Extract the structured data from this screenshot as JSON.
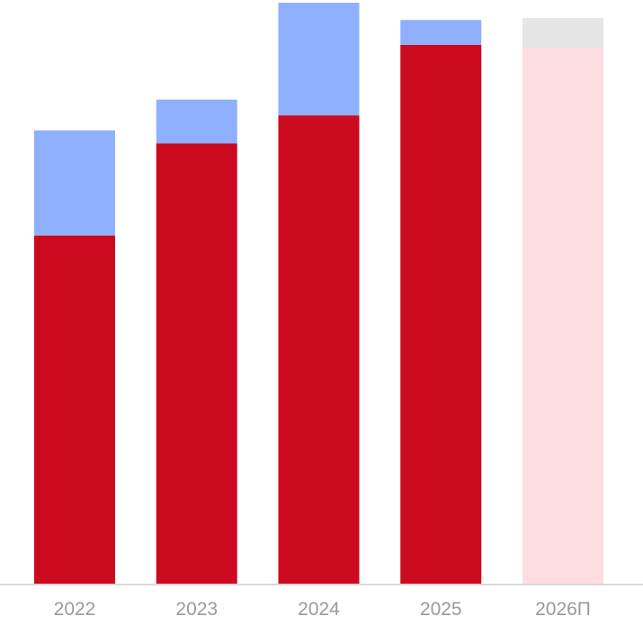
{
  "chart_data": {
    "type": "bar",
    "stacked": true,
    "title": "",
    "xlabel": "",
    "ylabel": "",
    "categories": [
      "2022",
      "2023",
      "2024",
      "2025",
      "2026П"
    ],
    "series": [
      {
        "values": [
          64.5,
          81.5,
          86.7,
          99.7,
          99.1
        ]
      },
      {
        "values": [
          19.4,
          8.1,
          20.8,
          4.6,
          5.6
        ]
      }
    ],
    "forecast_index": 4,
    "ylim": [
      0,
      108
    ],
    "grid": false,
    "legend": "none",
    "colors": {
      "series": [
        "#cc0a1f",
        "#8fb0ff"
      ],
      "forecast_series": [
        "#fddde1",
        "#e5e5e5"
      ],
      "axis": "#d9d9d9",
      "tick_label": "#9a9a9a"
    }
  }
}
